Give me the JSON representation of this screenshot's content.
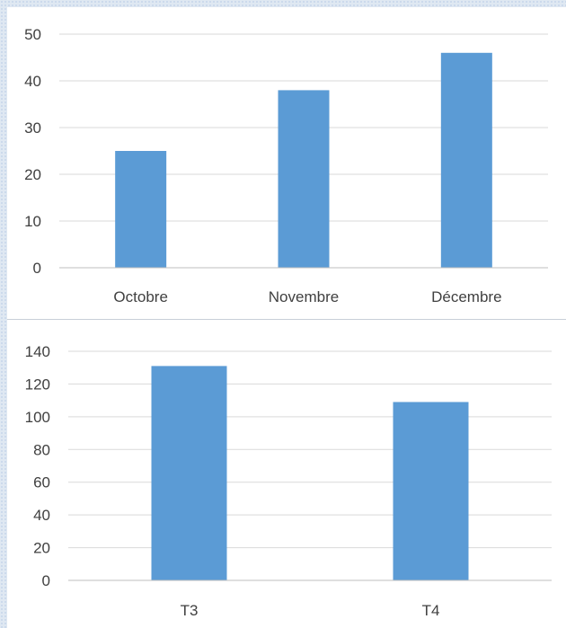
{
  "chart_data": [
    {
      "type": "bar",
      "categories": [
        "Octobre",
        "Novembre",
        "Décembre"
      ],
      "values": [
        25,
        38,
        46
      ],
      "title": "",
      "xlabel": "",
      "ylabel": "",
      "ylim": [
        0,
        50
      ],
      "yticks": [
        "0",
        "10",
        "20",
        "30",
        "40",
        "50"
      ],
      "grid": true,
      "legend": "none",
      "color": "#5b9bd5"
    },
    {
      "type": "bar",
      "categories": [
        "T3",
        "T4"
      ],
      "values": [
        131,
        109
      ],
      "title": "",
      "xlabel": "",
      "ylabel": "",
      "ylim": [
        0,
        140
      ],
      "yticks": [
        "0",
        "20",
        "40",
        "60",
        "80",
        "100",
        "120",
        "140"
      ],
      "grid": true,
      "legend": "none",
      "color": "#5b9bd5"
    }
  ]
}
